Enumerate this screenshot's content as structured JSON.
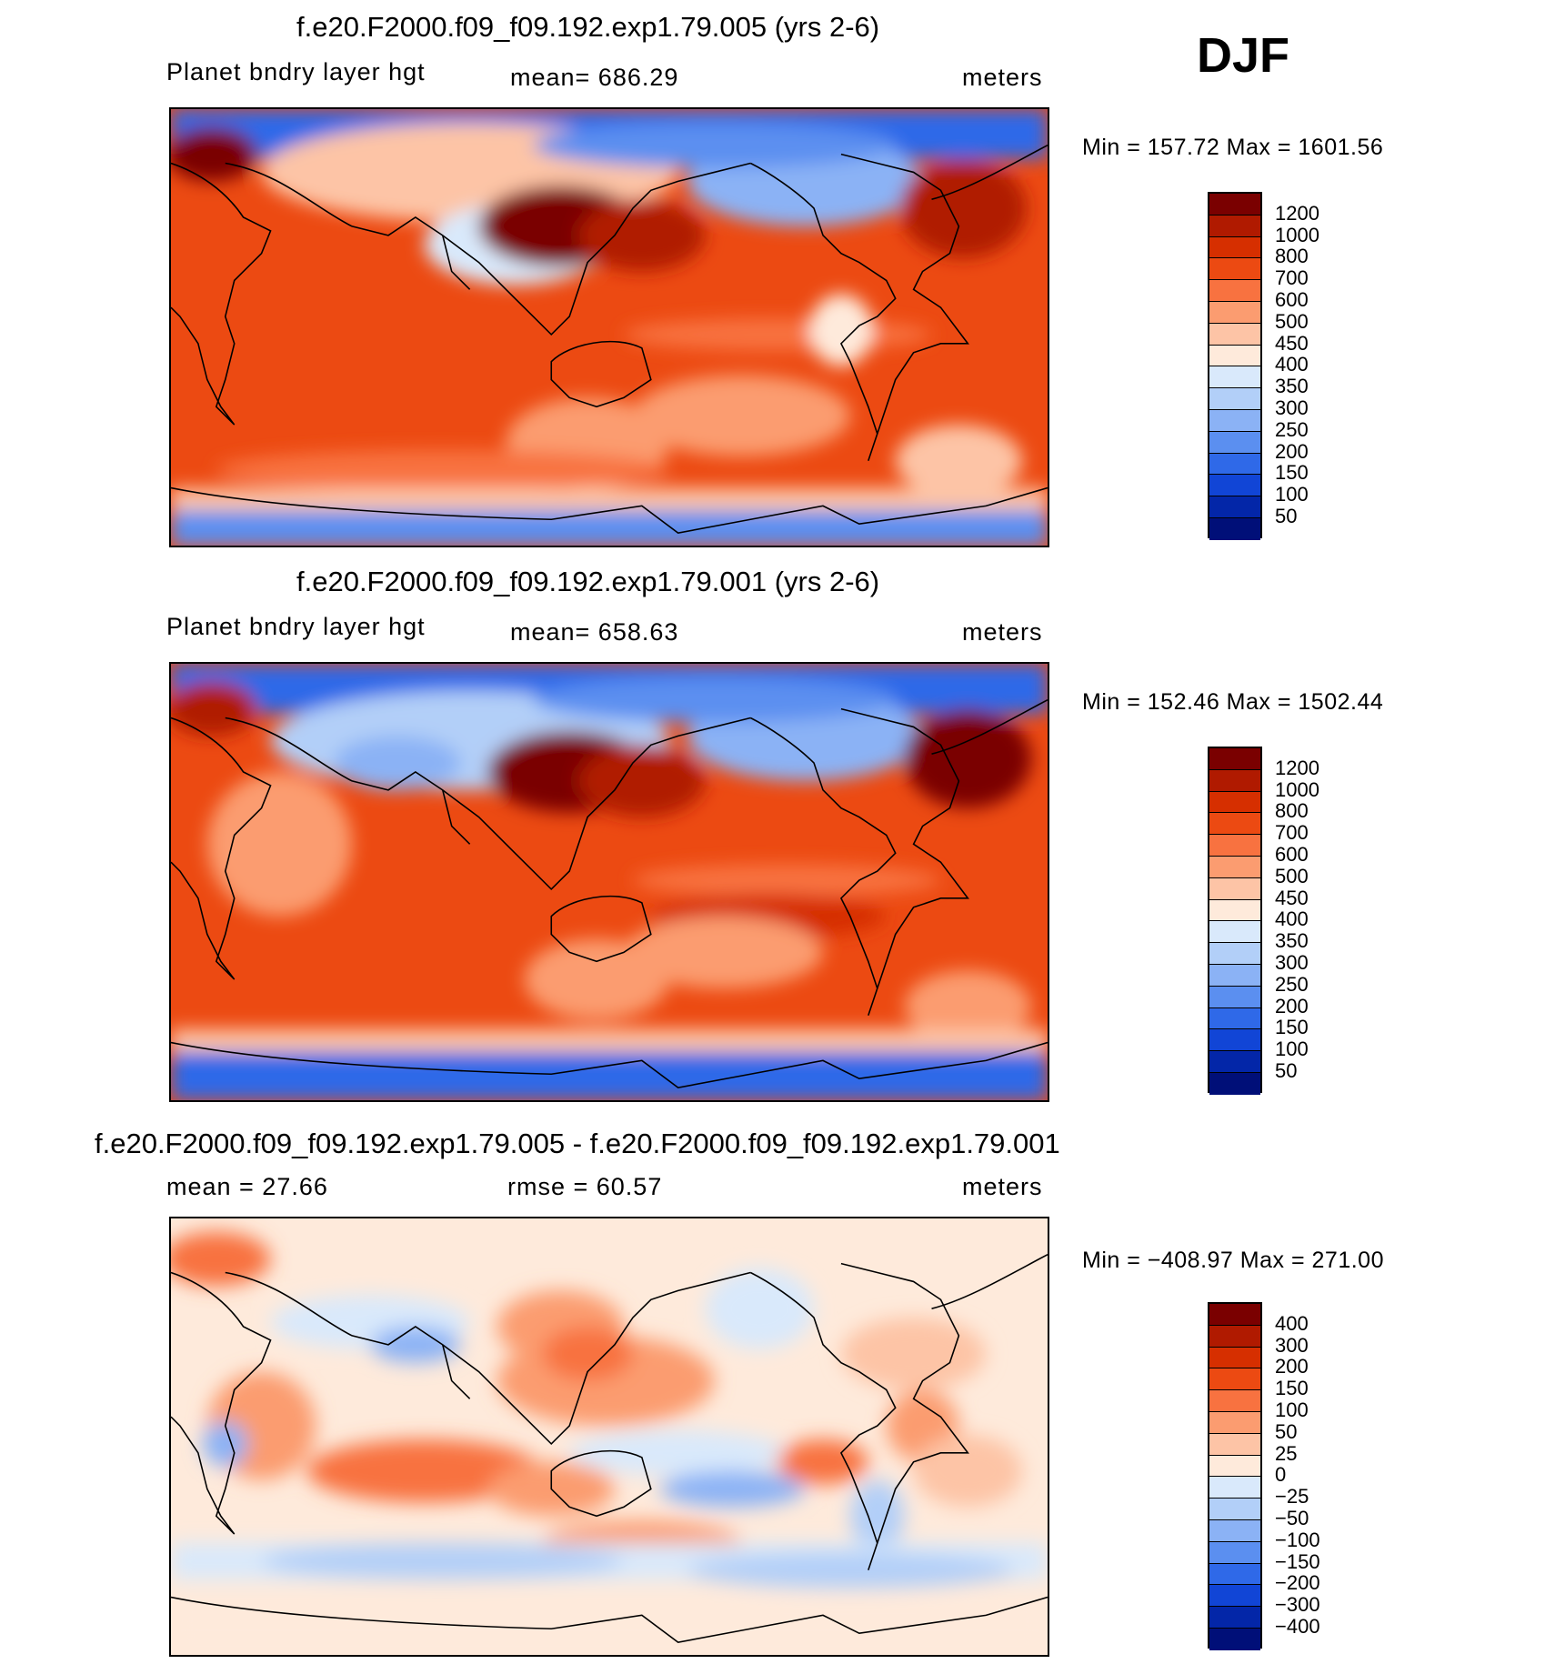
{
  "season": "DJF",
  "panels": [
    {
      "title": "f.e20.F2000.f09_f09.192.exp1.79.005 (yrs 2-6)",
      "left_label": "Planet bndry layer hgt",
      "center_label": "mean=  686.29",
      "right_label": "meters",
      "minmax": "Min  =  157.72  Max  =  1601.56",
      "kind": "absolute"
    },
    {
      "title": "f.e20.F2000.f09_f09.192.exp1.79.001 (yrs 2-6)",
      "left_label": "Planet bndry layer hgt",
      "center_label": "mean=  658.63",
      "right_label": "meters",
      "minmax": "Min  =  152.46  Max  =  1502.44",
      "kind": "absolute"
    },
    {
      "title": "f.e20.F2000.f09_f09.192.exp1.79.005 - f.e20.F2000.f09_f09.192.exp1.79.001",
      "left_label": "mean  =    27.66",
      "center_label": "rmse  =    60.57",
      "right_label": "meters",
      "minmax": "Min  =  −408.97  Max  =  271.00",
      "kind": "difference"
    }
  ],
  "colorbars": {
    "absolute": {
      "labels": [
        "1200",
        "1000",
        "800",
        "700",
        "600",
        "500",
        "450",
        "400",
        "350",
        "300",
        "250",
        "200",
        "150",
        "100",
        "50"
      ],
      "colors": [
        "#7a0000",
        "#b01a00",
        "#d62f00",
        "#ec4a12",
        "#f87240",
        "#fb9c70",
        "#fdc4a6",
        "#feeadb",
        "#d9e9fb",
        "#b2cff8",
        "#8bb2f5",
        "#5b8ff0",
        "#2f69e8",
        "#1145d6",
        "#0326a8",
        "#000f78"
      ]
    },
    "difference": {
      "labels": [
        "400",
        "300",
        "200",
        "150",
        "100",
        "50",
        "25",
        "0",
        "−25",
        "−50",
        "−100",
        "−150",
        "−200",
        "−300",
        "−400"
      ],
      "colors": [
        "#7a0000",
        "#b01a00",
        "#d62f00",
        "#ec4a12",
        "#f87240",
        "#fb9c70",
        "#fdc4a6",
        "#feeadb",
        "#d9e9fb",
        "#b2cff8",
        "#8bb2f5",
        "#5b8ff0",
        "#2f69e8",
        "#1145d6",
        "#0326a8",
        "#000f78"
      ]
    }
  }
}
